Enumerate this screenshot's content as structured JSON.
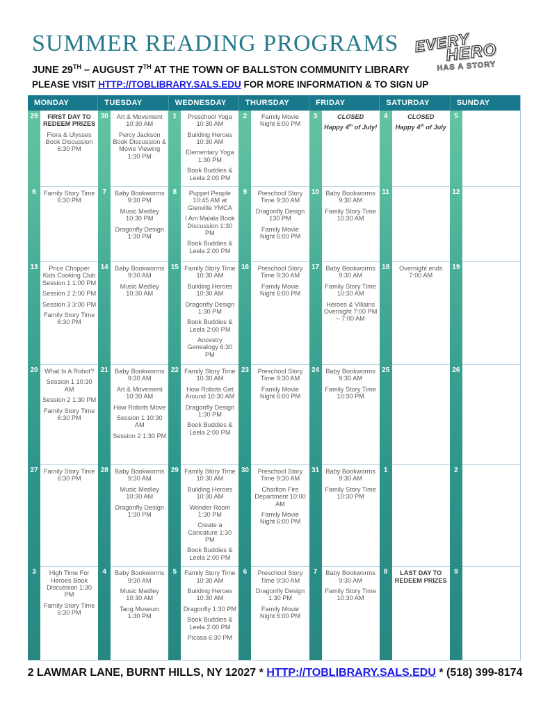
{
  "header": {
    "title": "SUMMER READING PROGRAMS",
    "subtitle": {
      "p1": "JUNE 29",
      "s1": "TH",
      "p2": " – AUGUST 7",
      "s2": "TH",
      "p3": " AT THE TOWN OF BALLSTON COMMUNITY LIBRARY"
    },
    "visit": {
      "p1": "PLEASE VISIT ",
      "link": "HTTP://TOBLIBRARY.SALS.EDU",
      "p2": " FOR MORE INFORMATION & TO SIGN UP"
    }
  },
  "logo": {
    "l1": "EVERY",
    "l2": "HERO",
    "l3": "HAS A STORY"
  },
  "colors": {
    "header_teal": "#17798b",
    "title_teal": "#26798c",
    "link_blue": "#1a1ae6",
    "divider_blue": "#aac9dc",
    "bar_green_top": "#63c3a3",
    "bar_green_bottom": "#278882"
  },
  "calendar": {
    "weekdays": [
      "MONDAY",
      "TUESDAY",
      "WEDNESDAY",
      "THURSDAY",
      "FRIDAY",
      "SATURDAY",
      "SUNDAY"
    ],
    "weeks": [
      {
        "days": [
          {
            "date": "29",
            "events": [
              {
                "text": "FIRST DAY TO REDEEM PRIZES",
                "style": "bold"
              },
              "Flora & Ulysses Book Discussion 6:30 PM"
            ]
          },
          {
            "date": "30",
            "events": [
              "Art & Movement 10:30 AM",
              "Percy Jackson Book Discussion & Movie Viewing 1:30 PM"
            ]
          },
          {
            "date": "1",
            "events": [
              "Preschool Yoga 10:30 AM",
              "Building Heroes 10:30 AM",
              "Elementary Yoga 1:30 PM",
              "Book Buddies & Leela 2:00 PM"
            ]
          },
          {
            "date": "2",
            "events": [
              "Family Movie Night 6:00 PM"
            ]
          },
          {
            "date": "3",
            "events": [
              {
                "text": "CLOSED",
                "style": "bold italic"
              },
              {
                "text": "Happy 4th of July!",
                "style": "italic"
              }
            ]
          },
          {
            "date": "4",
            "events": [
              {
                "text": "CLOSED",
                "style": "bold italic"
              },
              {
                "text": "Happy 4th of July",
                "style": "italic"
              }
            ]
          },
          {
            "date": "5",
            "events": []
          }
        ]
      },
      {
        "days": [
          {
            "date": "6",
            "events": [
              "Family Story Time 6:30 PM"
            ]
          },
          {
            "date": "7",
            "events": [
              "Baby Bookworms 9:30 PM",
              "Music Medley 10:30 PM",
              "Dragonfly Design 1:30 PM"
            ]
          },
          {
            "date": "8",
            "events": [
              "Puppet People 10:45 AM at Glenville YMCA",
              "I Am Malala Book Discussion 1:30 PM",
              "Book Buddies & Leela 2:00 PM"
            ]
          },
          {
            "date": "9",
            "events": [
              "Preschool Story Time 9:30 AM",
              "Dragonfly Design 130 PM",
              "Family Movie Night 6:00 PM"
            ]
          },
          {
            "date": "10",
            "events": [
              "Baby Bookworms 9:30 AM",
              "Family Story Time 10:30 AM"
            ]
          },
          {
            "date": "11",
            "events": []
          },
          {
            "date": "12",
            "events": []
          }
        ]
      },
      {
        "days": [
          {
            "date": "13",
            "events": [
              "Price Chopper Kids Cooking Club Session 1 1:00 PM",
              "Session 2 2:00 PM",
              "Session 3 3:00 PM",
              "Family Story Time 6:30 PM"
            ]
          },
          {
            "date": "14",
            "events": [
              "Baby Bookworms 9:30 AM",
              "Music Medley 10:30 AM"
            ]
          },
          {
            "date": "15",
            "events": [
              "Family Story Time 10:30 AM",
              "Building Heroes 10:30 AM",
              "Dragonfly Design 1:30 PM",
              "Book Buddies & Leela 2:00 PM",
              "Ancestry Genealogy 6:30 PM"
            ]
          },
          {
            "date": "16",
            "events": [
              "Preschool Story Time 9:30 AM",
              "Family Movie Night 6:00 PM"
            ]
          },
          {
            "date": "17",
            "events": [
              "Baby Bookworms 9:30 AM",
              "Family Story Time 10:30 AM",
              "Heroes & Villains Overnight 7:00 PM – 7:00 AM"
            ]
          },
          {
            "date": "18",
            "events": [
              "Overnight ends 7:00 AM"
            ]
          },
          {
            "date": "19",
            "events": []
          }
        ]
      },
      {
        "days": [
          {
            "date": "20",
            "events": [
              "What Is A Robot?",
              "Session 1 10:30 AM",
              "Session 2 1:30 PM",
              "Family Story Time 6:30 PM"
            ]
          },
          {
            "date": "21",
            "events": [
              "Baby Bookworms 9:30 AM",
              "Art & Movement 10:30 AM",
              "How Robots Move",
              "Session 1 10:30 AM",
              "Session 2 1:30 PM"
            ]
          },
          {
            "date": "22",
            "events": [
              "Family Story Time 10:30 AM",
              "How Robots Get Around 10:30 AM",
              "Dragonfly Design 1:30 PM",
              "Book Buddies & Leela 2:00 PM"
            ]
          },
          {
            "date": "23",
            "events": [
              "Preschool Story Time 9:30 AM",
              "Family Movie Night 6:00 PM"
            ]
          },
          {
            "date": "24",
            "events": [
              "Baby Bookworms 9:30 AM",
              "Family Story Time 10:30 PM"
            ]
          },
          {
            "date": "25",
            "events": []
          },
          {
            "date": "26",
            "events": []
          }
        ]
      },
      {
        "days": [
          {
            "date": "27",
            "events": [
              "Family Story Time 6:30 PM"
            ]
          },
          {
            "date": "28",
            "events": [
              "Baby Bookworms 9:30 AM",
              "Music Medley 10:30 AM",
              "Dragonfly Design 1:30 PM"
            ]
          },
          {
            "date": "29",
            "events": [
              "Family Story Time 10:30 AM",
              "Building Heroes 10:30 AM",
              "Wonder Room 1:30 PM",
              "Create a Caricature 1:30 PM",
              "Book Buddies & Leela 2:00 PM"
            ]
          },
          {
            "date": "30",
            "events": [
              "Preschool Story Time 9:30 AM",
              "Charlton Fire Department 10:00 AM",
              "Family Movie Night 6:00 PM"
            ]
          },
          {
            "date": "31",
            "events": [
              "Baby Bookworms 9:30 AM",
              "Family Story Time 10:30 PM"
            ]
          },
          {
            "date": "1",
            "events": []
          },
          {
            "date": "2",
            "events": []
          }
        ]
      },
      {
        "days": [
          {
            "date": "3",
            "events": [
              "High Time For Heroes Book Discussion 1:30 PM",
              "Family Story Time 6:30 PM"
            ]
          },
          {
            "date": "4",
            "events": [
              "Baby Bookworms 9:30 AM",
              "Music Medley 10:30 AM",
              "Tang Museum 1:30 PM"
            ]
          },
          {
            "date": "5",
            "events": [
              "Family Story Time 10:30 AM",
              "Building Heroes 10:30 AM",
              "Dragonfly 1:30 PM",
              "Book Buddies & Leela 2:00 PM",
              "Picasa 6:30 PM"
            ]
          },
          {
            "date": "6",
            "events": [
              "Preschool Story Time 9:30 AM",
              "Dragonfly Design 1:30 PM",
              "Family Movie Night 6:00 PM"
            ]
          },
          {
            "date": "7",
            "events": [
              "Baby Bookworms 9:30 AM",
              "Family Story Time 10:30 AM"
            ]
          },
          {
            "date": "8",
            "events": [
              {
                "text": "LAST DAY TO REDEEM PRIZES",
                "style": "bold"
              }
            ]
          },
          {
            "date": "9",
            "events": []
          }
        ]
      }
    ]
  },
  "footer": {
    "p1": "2 LAWMAR LANE, BURNT HILLS, NY 12027 * ",
    "link": "HTTP://TOBLIBRARY.SALS.EDU",
    "p2": " * (518) 399-8174"
  }
}
